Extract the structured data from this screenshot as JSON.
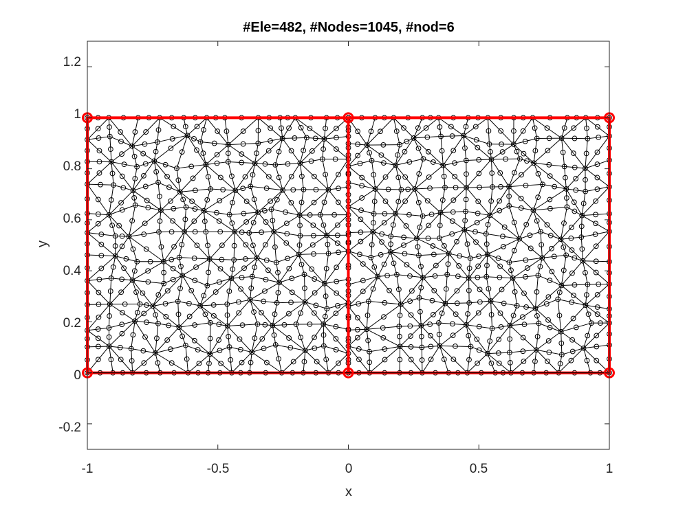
{
  "title": "#Ele=482, #Nodes=1045, #nod=6",
  "xlabel": "x",
  "ylabel": "y",
  "x_ticks": [
    "-1",
    "-0.5",
    "0",
    "0.5",
    "1"
  ],
  "y_ticks": [
    "-0.2",
    "0",
    "0.2",
    "0.4",
    "0.6",
    "0.8",
    "1",
    "1.2"
  ],
  "colors": {
    "mesh": "#000000",
    "boundary": "#ff0000",
    "axes": "#262626"
  },
  "chart_data": {
    "type": "scatter",
    "description_kind": "triangular finite element mesh",
    "xlim": [
      -1,
      1
    ],
    "ylim": [
      -0.3,
      1.3
    ],
    "x_tick_values": [
      -1,
      -0.5,
      0,
      0.5,
      1
    ],
    "y_tick_values": [
      -0.2,
      0,
      0.2,
      0.4,
      0.6,
      0.8,
      1,
      1.2
    ],
    "elements": 482,
    "nodes": 1045,
    "nodes_per_element": 6,
    "domain_rectangles": [
      {
        "x": [
          -1,
          0
        ],
        "y": [
          0,
          1
        ]
      },
      {
        "x": [
          0,
          1
        ],
        "y": [
          0,
          1
        ]
      }
    ],
    "boundary_vertices": [
      [
        -1,
        0
      ],
      [
        -1,
        1
      ],
      [
        0,
        0
      ],
      [
        0,
        1
      ],
      [
        1,
        0
      ],
      [
        1,
        1
      ]
    ],
    "grid": false
  }
}
